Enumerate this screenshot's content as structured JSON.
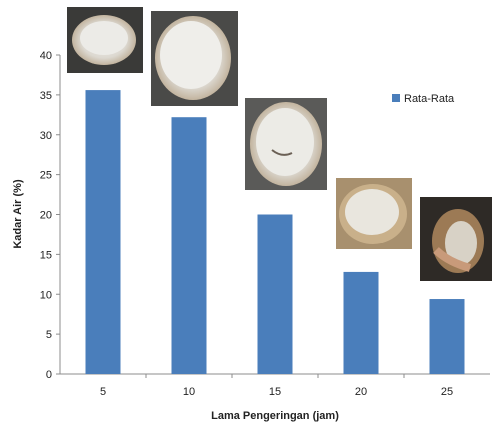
{
  "chart_data": {
    "type": "bar",
    "xlabel": "Lama Pengeringan (jam)",
    "ylabel": "Kadar Air (%)",
    "ylim": [
      0,
      40
    ],
    "yticks": [
      0,
      5,
      10,
      15,
      20,
      25,
      30,
      35,
      40
    ],
    "categories": [
      "5",
      "10",
      "15",
      "20",
      "25"
    ],
    "series": [
      {
        "name": "Rata-Rata",
        "values": [
          35.6,
          32.2,
          20.0,
          12.8,
          9.4
        ]
      }
    ],
    "grid": false,
    "legend": "top-right",
    "bar_color": "#4a7ebb"
  }
}
